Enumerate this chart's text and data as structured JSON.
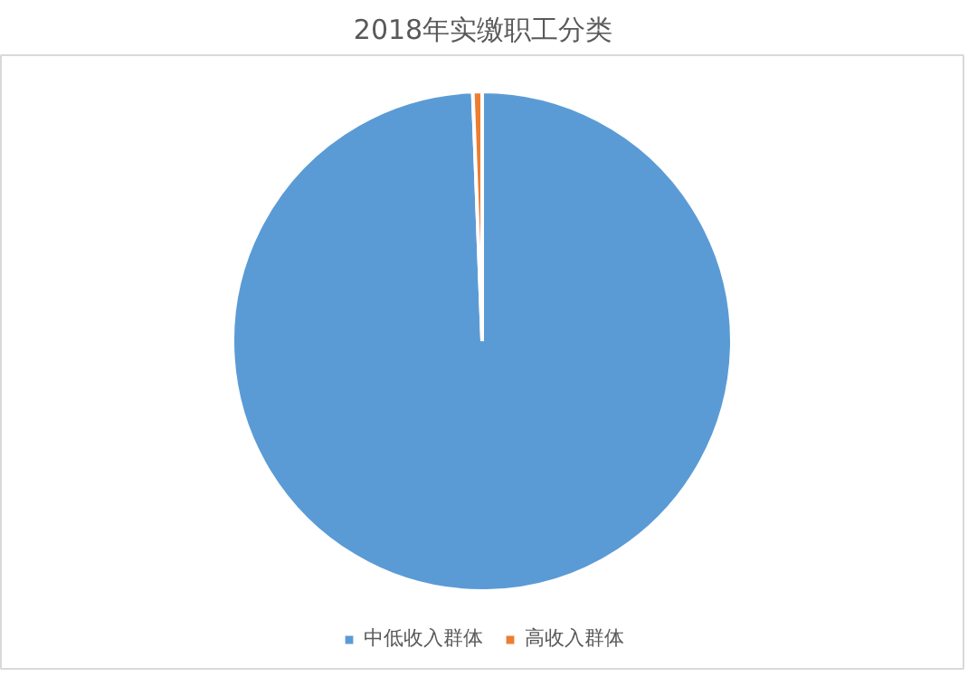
{
  "chart_data": {
    "type": "pie",
    "title": "2018年实缴职工分类",
    "categories": [
      "中低收入群体",
      "高收入群体"
    ],
    "values": [
      99.4,
      0.6
    ],
    "colors": [
      "#5b9bd5",
      "#ed7d31"
    ],
    "legend": "bottom"
  }
}
